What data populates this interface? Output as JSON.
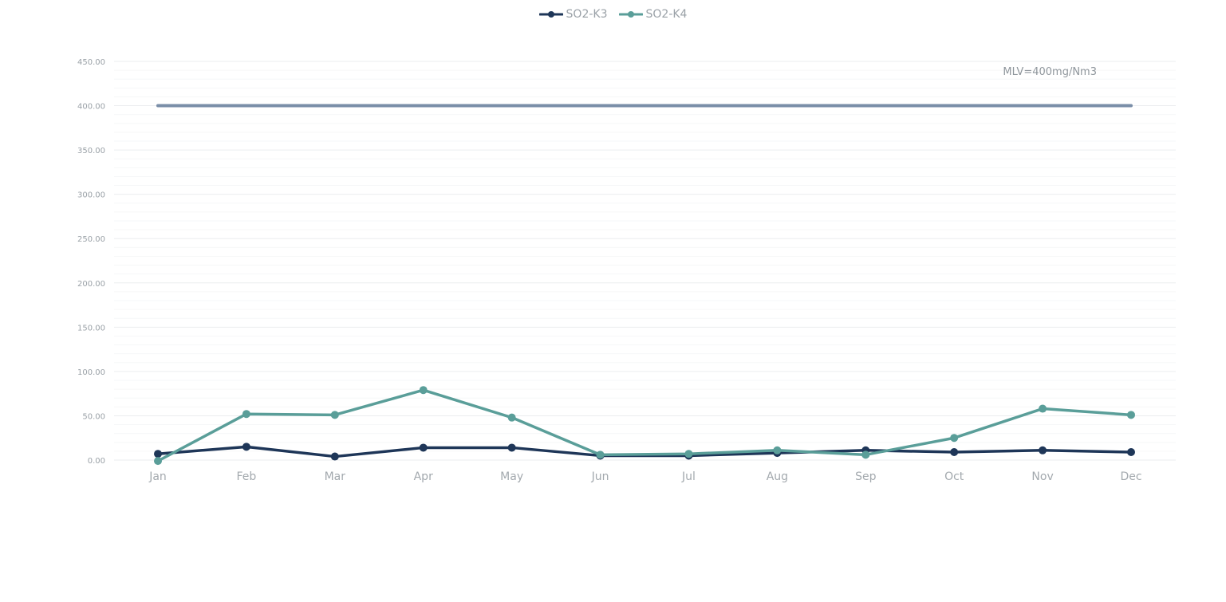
{
  "chart_data": {
    "type": "line",
    "categories": [
      "Jan",
      "Feb",
      "Mar",
      "Apr",
      "May",
      "Jun",
      "Jul",
      "Aug",
      "Sep",
      "Oct",
      "Nov",
      "Dec"
    ],
    "series": [
      {
        "name": "SO2-K3",
        "color": "#1e3658",
        "values": [
          7,
          15,
          4,
          14,
          14,
          5,
          5,
          8,
          11,
          9,
          11,
          9
        ]
      },
      {
        "name": "SO2-K4",
        "color": "#5a9e99",
        "values": [
          -1,
          52,
          51,
          79,
          48,
          6,
          7,
          11,
          6,
          25,
          58,
          51
        ]
      }
    ],
    "reference_line": {
      "value": 400,
      "label": "MLV=400mg/Nm3",
      "color": "#7a8ea8"
    },
    "yticks": [
      "0.00",
      "50.00",
      "100.00",
      "150.00",
      "200.00",
      "250.00",
      "300.00",
      "350.00",
      "400.00",
      "450.00"
    ],
    "ylim": [
      0,
      450
    ],
    "minor_gridlines": true,
    "legend_position": "top-center",
    "xlabel": "",
    "ylabel": ""
  }
}
